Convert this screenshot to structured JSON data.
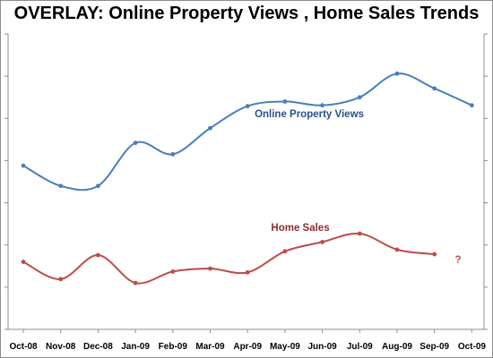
{
  "chart_data": {
    "type": "line",
    "title": "OVERLAY:  Online Property Views , Home Sales Trends",
    "categories": [
      "Oct-08",
      "Nov-08",
      "Dec-08",
      "Jan-09",
      "Feb-09",
      "Mar-09",
      "Apr-09",
      "May-09",
      "Jun-09",
      "Jul-09",
      "Aug-09",
      "Sep-09",
      "Oct-09"
    ],
    "ylim": [
      0,
      7
    ],
    "grid": false,
    "series": [
      {
        "name": "Online Property Views",
        "color": "#4a7ebb",
        "values": [
          3.88,
          3.4,
          3.4,
          4.42,
          4.15,
          4.77,
          5.29,
          5.4,
          5.31,
          5.5,
          6.06,
          5.71,
          5.31
        ]
      },
      {
        "name": "Home Sales",
        "color": "#be4b48",
        "values": [
          1.6,
          1.19,
          1.76,
          1.1,
          1.37,
          1.44,
          1.35,
          1.85,
          2.07,
          2.27,
          1.89,
          1.78,
          null
        ]
      }
    ],
    "annotations": [
      {
        "text": "?",
        "category": "Oct-09",
        "value": 1.78,
        "color": "#c0504d"
      }
    ]
  }
}
